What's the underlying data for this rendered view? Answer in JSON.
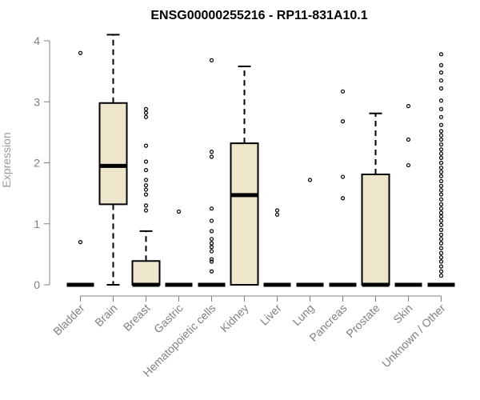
{
  "chart_data": {
    "type": "box",
    "title": "ENSG00000255216 - RP11-831A10.1",
    "xlabel": "",
    "ylabel": "Expression",
    "ylim": [
      0,
      4.1
    ],
    "yticks": [
      0,
      1,
      2,
      3,
      4
    ],
    "categories": [
      "Bladder",
      "Brain",
      "Breast",
      "Gastric",
      "Hematopoietic cells",
      "Kidney",
      "Liver",
      "Lung",
      "Pancreas",
      "Prostate",
      "Skin",
      "Unknown / Other"
    ],
    "boxes": [
      {
        "q1": 0,
        "median": 0,
        "q3": 0,
        "whisker_low": 0,
        "whisker_high": 0,
        "outliers": [
          0.7,
          3.8
        ]
      },
      {
        "q1": 1.32,
        "median": 1.95,
        "q3": 2.98,
        "whisker_low": 0,
        "whisker_high": 4.1,
        "outliers": []
      },
      {
        "q1": 0,
        "median": 0,
        "q3": 0.39,
        "whisker_low": 0,
        "whisker_high": 0.88,
        "outliers": [
          1.22,
          1.3,
          1.48,
          1.56,
          1.63,
          1.72,
          1.88,
          2.02,
          2.28,
          2.75,
          2.82,
          2.88
        ]
      },
      {
        "q1": 0,
        "median": 0,
        "q3": 0,
        "whisker_low": 0,
        "whisker_high": 0,
        "outliers": [
          1.2
        ]
      },
      {
        "q1": 0,
        "median": 0,
        "q3": 0,
        "whisker_low": 0,
        "whisker_high": 0,
        "outliers": [
          0.22,
          0.38,
          0.42,
          0.55,
          0.62,
          0.68,
          0.75,
          0.88,
          1.05,
          1.25,
          2.1,
          2.18,
          3.68
        ]
      },
      {
        "q1": 0,
        "median": 1.47,
        "q3": 2.32,
        "whisker_low": 0,
        "whisker_high": 3.58,
        "outliers": []
      },
      {
        "q1": 0,
        "median": 0,
        "q3": 0,
        "whisker_low": 0,
        "whisker_high": 0,
        "outliers": [
          1.15,
          1.22
        ]
      },
      {
        "q1": 0,
        "median": 0,
        "q3": 0,
        "whisker_low": 0,
        "whisker_high": 0,
        "outliers": [
          1.72
        ]
      },
      {
        "q1": 0,
        "median": 0,
        "q3": 0,
        "whisker_low": 0,
        "whisker_high": 0,
        "outliers": [
          1.42,
          1.77,
          2.68,
          3.17
        ]
      },
      {
        "q1": 0,
        "median": 0,
        "q3": 1.81,
        "whisker_low": 0,
        "whisker_high": 2.81,
        "outliers": []
      },
      {
        "q1": 0,
        "median": 0,
        "q3": 0,
        "whisker_low": 0,
        "whisker_high": 0,
        "outliers": [
          1.96,
          2.38,
          2.93
        ]
      },
      {
        "q1": 0,
        "median": 0,
        "q3": 0,
        "whisker_low": 0,
        "whisker_high": 0,
        "outliers": [
          0.15,
          0.22,
          0.3,
          0.38,
          0.45,
          0.52,
          0.6,
          0.68,
          0.75,
          0.82,
          0.9,
          0.98,
          1.05,
          1.12,
          1.18,
          1.25,
          1.32,
          1.4,
          1.48,
          1.55,
          1.62,
          1.7,
          1.78,
          1.85,
          1.92,
          2.0,
          2.08,
          2.15,
          2.22,
          2.3,
          2.38,
          2.45,
          2.52,
          2.62,
          2.75,
          2.88,
          3.02,
          3.22,
          3.35,
          3.48,
          3.6,
          3.78
        ]
      }
    ],
    "colors": {
      "box_fill": "#ede5cc",
      "box_stroke": "#000000",
      "axis": "#808080",
      "outlier": "#000000"
    },
    "grid": false,
    "legend": "none"
  }
}
